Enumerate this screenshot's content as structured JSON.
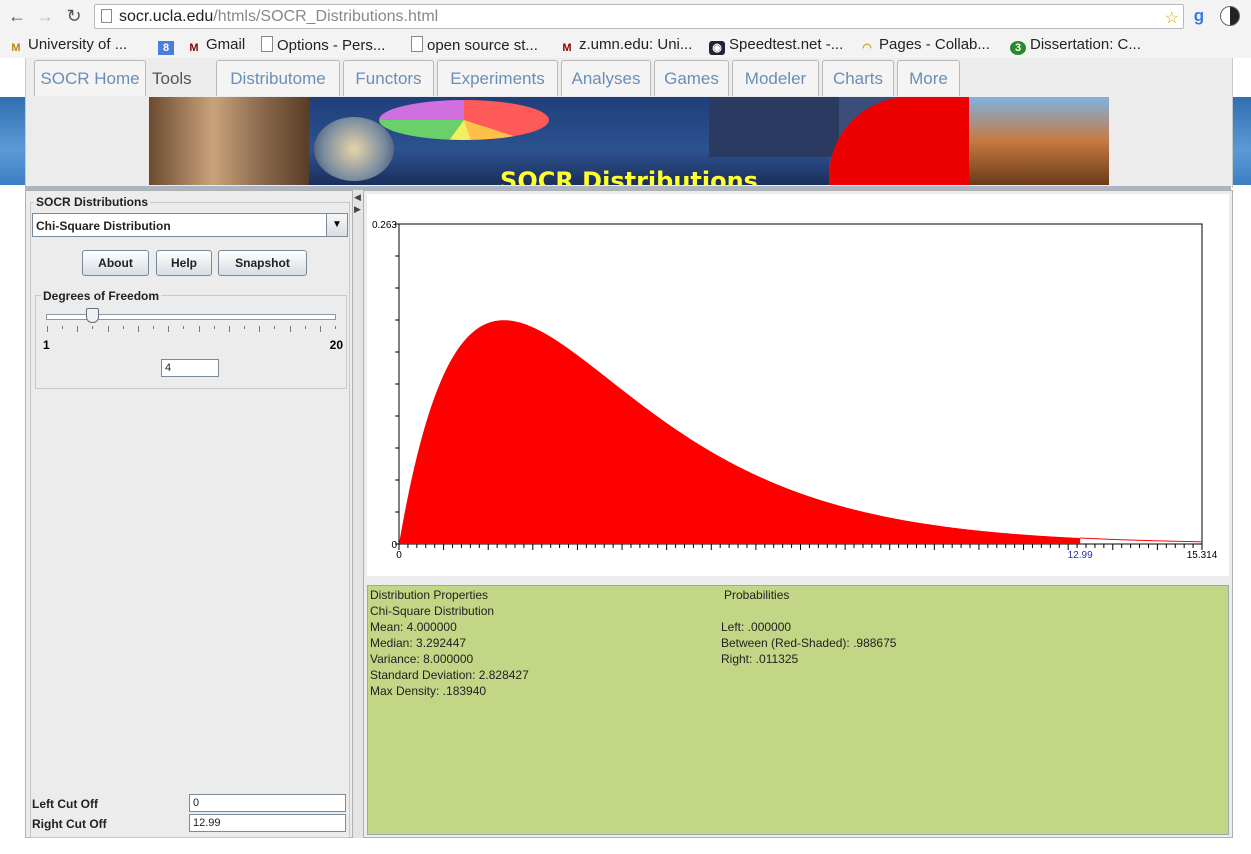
{
  "browser": {
    "url_host": "socr.ucla.edu",
    "url_path": "/htmls/SOCR_Distributions.html",
    "bookmarks": [
      "University of ...",
      "Gmail",
      "Options - Pers...",
      "open source st...",
      "z.umn.edu: Uni...",
      "Speedtest.net -...",
      "Pages - Collab...",
      "Dissertation: C..."
    ]
  },
  "site": {
    "tabs": [
      "SOCR Home",
      "Distributome",
      "Functors",
      "Experiments",
      "Analyses",
      "Games",
      "Modeler",
      "Charts",
      "More"
    ],
    "tools_label": "Tools",
    "tools_arrow": "⇒",
    "banner_title": "SOCR Distributions"
  },
  "left_panel": {
    "group_title": "SOCR Distributions",
    "distribution": "Chi-Square Distribution",
    "buttons": [
      "About",
      "Help",
      "Snapshot"
    ],
    "dof_title": "Degrees of Freedom",
    "slider_min": "1",
    "slider_max": "20",
    "slider_value_fraction": 0.158,
    "dof_value": "4",
    "left_cut_label": "Left Cut Off",
    "left_cut_value": "0",
    "right_cut_label": "Right Cut Off",
    "right_cut_value": "12.99"
  },
  "chart_data": {
    "type": "area",
    "distribution": "chi-square",
    "df": 4,
    "xlim": [
      0,
      15.314
    ],
    "ylim": [
      0,
      0.263
    ],
    "x_tick_labels": [
      "0",
      "12.99",
      "15.314"
    ],
    "y_tick_labels": [
      "0.263",
      "0"
    ],
    "shaded_from": 0,
    "shaded_to": 12.99,
    "fill_color": "#ff0000",
    "cut_label_color": "#2233aa"
  },
  "properties": {
    "header_left": "Distribution Properties",
    "header_right": "Probabilities",
    "lines_left": [
      "Chi-Square Distribution",
      "Mean: 4.000000",
      "Median: 3.292447",
      "Variance: 8.000000",
      "Standard Deviation: 2.828427",
      "Max Density: .183940"
    ],
    "lines_right": [
      "Left: .000000",
      "Between (Red-Shaded): .988675",
      "Right: .011325"
    ],
    "background": "#c3d686"
  }
}
